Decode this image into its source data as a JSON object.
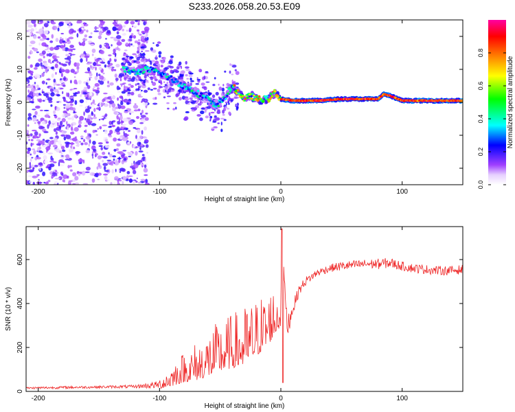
{
  "title": "S233.2026.058.20.53.E09",
  "chart_data": [
    {
      "type": "heatmap",
      "panel": "spectrogram",
      "xlabel": "Height of straight line (km)",
      "ylabel": "Frequency (Hz)",
      "xlim": [
        -210,
        150
      ],
      "ylim": [
        -25,
        25
      ],
      "xticks": [
        -200,
        -100,
        0,
        100
      ],
      "yticks": [
        -20,
        -10,
        0,
        10,
        20
      ],
      "colorbar": {
        "label": "Normalized spectral amplitude",
        "range": [
          0,
          1
        ],
        "ticks": [
          0.0,
          0.2,
          0.4,
          0.6,
          0.8
        ],
        "colors": [
          "#ffffff",
          "#a040ff",
          "#0000ff",
          "#00ffff",
          "#00ff00",
          "#ffff00",
          "#ff8000",
          "#ff0000",
          "#ff00a0"
        ]
      },
      "ridge": {
        "x": [
          -130,
          -120,
          -110,
          -100,
          -90,
          -80,
          -70,
          -60,
          -55,
          -50,
          -45,
          -40,
          -35,
          -30,
          -25,
          -20,
          -10,
          -5,
          0,
          10,
          30,
          50,
          70,
          80,
          85,
          90,
          100,
          110,
          120,
          150
        ],
        "frequency": [
          10,
          9,
          10,
          9,
          7,
          5,
          3,
          1,
          -1,
          0,
          2,
          5,
          3,
          1,
          2,
          1,
          1,
          3,
          1,
          0.5,
          0.5,
          1,
          1,
          1,
          2.5,
          2,
          0.5,
          0.5,
          0.5,
          0.5
        ]
      }
    },
    {
      "type": "line",
      "panel": "snr",
      "xlabel": "Height of straight line (km)",
      "ylabel": "SNR (10 * v/v)",
      "xlim": [
        -210,
        150
      ],
      "ylim": [
        0,
        750
      ],
      "xticks": [
        -200,
        -100,
        0,
        100
      ],
      "yticks": [
        0,
        200,
        400,
        600
      ],
      "color": "#ee2222",
      "series": {
        "name": "SNR",
        "x": [
          -210,
          -180,
          -150,
          -120,
          -100,
          -90,
          -80,
          -70,
          -60,
          -50,
          -40,
          -30,
          -20,
          -10,
          0,
          1,
          5,
          10,
          15,
          20,
          25,
          30,
          40,
          50,
          60,
          70,
          80,
          90,
          100,
          110,
          120,
          130,
          140,
          150
        ],
        "values": [
          15,
          18,
          20,
          22,
          30,
          60,
          90,
          110,
          140,
          170,
          190,
          210,
          250,
          300,
          370,
          720,
          290,
          380,
          460,
          500,
          520,
          540,
          560,
          570,
          575,
          580,
          580,
          585,
          570,
          560,
          555,
          550,
          550,
          555
        ],
        "noise_amplitude": [
          8,
          10,
          10,
          12,
          30,
          60,
          80,
          100,
          120,
          130,
          140,
          150,
          150,
          140,
          120,
          0,
          100,
          50,
          40,
          35,
          30,
          30,
          30,
          35,
          35,
          35,
          40,
          40,
          35,
          35,
          35,
          35,
          35,
          35
        ]
      }
    }
  ]
}
